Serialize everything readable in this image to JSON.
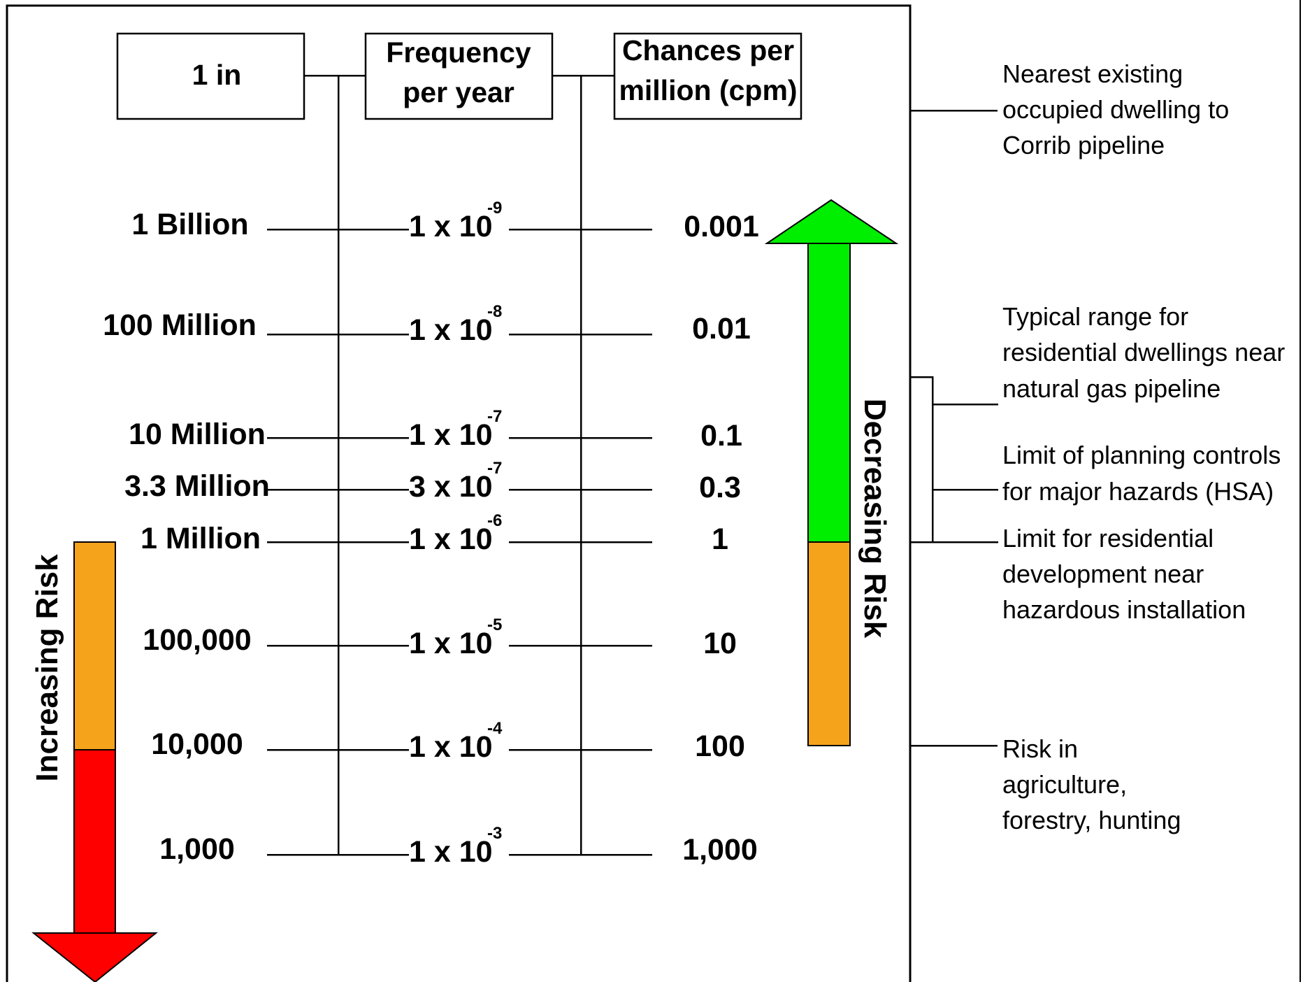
{
  "headers": {
    "one_in": "1 in",
    "frequency": [
      "Frequency",
      "per year"
    ],
    "cpm": [
      "Chances per",
      "million (cpm)"
    ]
  },
  "rows": [
    {
      "one_in": "1 Billion",
      "coef": "1 x 10",
      "exp": "-9",
      "cpm": "0.001"
    },
    {
      "one_in": "100 Million",
      "coef": "1 x 10",
      "exp": "-8",
      "cpm": "0.01"
    },
    {
      "one_in": "10 Million",
      "coef": "1 x 10",
      "exp": "-7",
      "cpm": "0.1"
    },
    {
      "one_in": "3.3 Million",
      "coef": "3 x 10",
      "exp": "-7",
      "cpm": "0.3"
    },
    {
      "one_in": "1 Million",
      "coef": "1 x 10",
      "exp": "-6",
      "cpm": "1"
    },
    {
      "one_in": "100,000",
      "coef": "1 x 10",
      "exp": "-5",
      "cpm": "10"
    },
    {
      "one_in": "10,000",
      "coef": "1 x 10",
      "exp": "-4",
      "cpm": "100"
    },
    {
      "one_in": "1,000",
      "coef": "1 x 10",
      "exp": "-3",
      "cpm": "1,000"
    }
  ],
  "arrows": {
    "increasing": {
      "label": "Increasing Risk",
      "colors": [
        "#f5a31a",
        "#ff0000"
      ]
    },
    "decreasing": {
      "label": "Decreasing Risk",
      "colors": [
        "#00ee00",
        "#f5a31a"
      ]
    }
  },
  "annotations": {
    "nearest_dwelling": [
      "Nearest existing",
      "occupied dwelling to",
      "Corrib pipeline"
    ],
    "typical_range": [
      "Typical range for",
      "residential dwellings near",
      "natural gas pipeline"
    ],
    "planning_limit": [
      "Limit of planning controls",
      "for major hazards (HSA)"
    ],
    "residential_limit": [
      "Limit for residential",
      "development near",
      "hazardous installation"
    ],
    "agriculture_risk": [
      "Risk in",
      "agriculture,",
      "forestry, hunting"
    ]
  }
}
